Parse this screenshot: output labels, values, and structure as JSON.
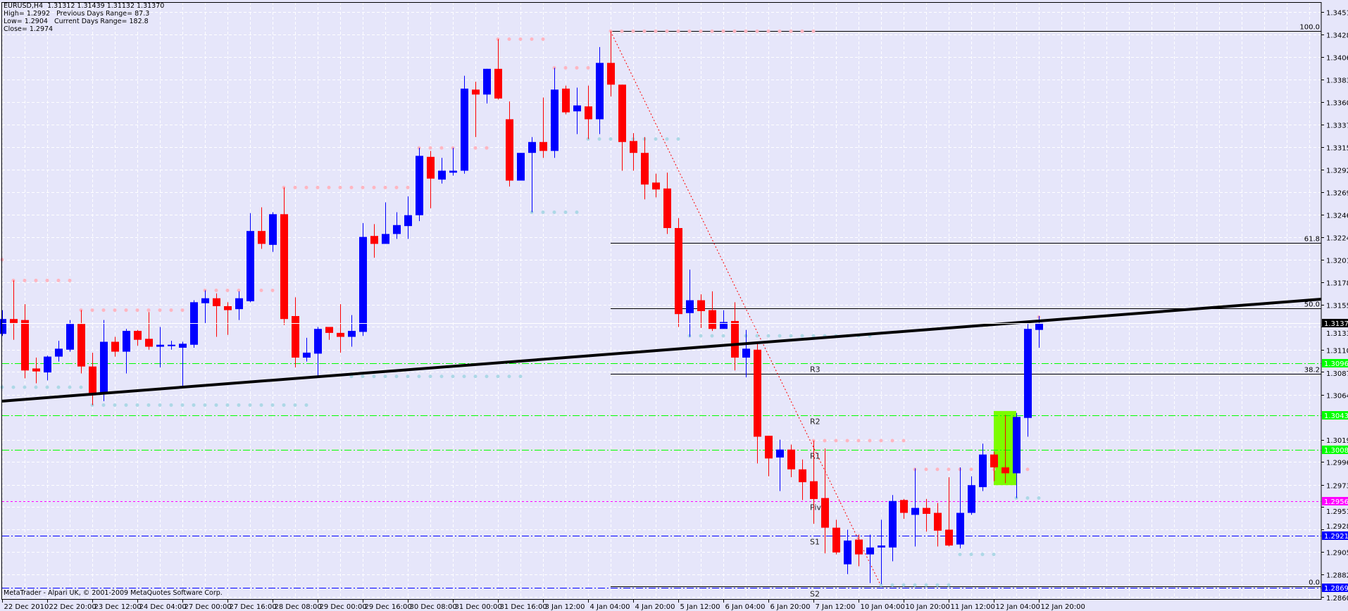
{
  "window": {
    "symbol_line": "EURUSD,H4  1.31312 1.31439 1.31132 1.31370",
    "high_line": "High= 1.2992",
    "prev_range_line": "Previous Days Range= 87.3",
    "low_line": "Low= 1.2904",
    "cur_range_line": "Current Days Range= 182.8",
    "close_line": "Close= 1.2974",
    "copyright": "MetaTrader - Alpari UK, © 2001-2009 MetaQuotes Software Corp."
  },
  "colors": {
    "background": "#E6E6FA",
    "bull": "#0000FF",
    "bear": "#FF0000",
    "resistance_dots": "#FFB6C1",
    "support_dots": "#ADD8E6",
    "pivot_r": "#00FF00",
    "pivot": "#FF00FF",
    "pivot_s": "#0000FF",
    "highlight": "#7CFC00",
    "trendline": "#000000"
  },
  "chart_data": {
    "type": "candlestick",
    "title": "EURUSD,H4",
    "grid": true,
    "ylim": [
      1.286,
      1.34515
    ],
    "y_ticks": [
      "1.34515",
      "1.34285",
      "1.34060",
      "1.33830",
      "1.33605",
      "1.33375",
      "1.33150",
      "1.32920",
      "1.32695",
      "1.32465",
      "1.32240",
      "1.32010",
      "1.31785",
      "1.31555",
      "1.31330",
      "1.31100",
      "1.30875",
      "1.30645",
      "1.30190",
      "1.29965",
      "1.29735",
      "1.29510",
      "1.29280",
      "1.29055",
      "1.28825",
      "1.28600"
    ],
    "x_labels": [
      "22 Dec 2010",
      "22 Dec 20:00",
      "23 Dec 12:00",
      "24 Dec 04:00",
      "27 Dec 00:00",
      "27 Dec 16:00",
      "28 Dec 08:00",
      "29 Dec 00:00",
      "29 Dec 16:00",
      "30 Dec 08:00",
      "31 Dec 00:00",
      "31 Dec 16:00",
      "3 Jan 12:00",
      "4 Jan 04:00",
      "4 Jan 20:00",
      "5 Jan 12:00",
      "6 Jan 04:00",
      "6 Jan 20:00",
      "7 Jan 12:00",
      "10 Jan 04:00",
      "10 Jan 20:00",
      "11 Jan 12:00",
      "12 Jan 04:00",
      "12 Jan 20:00"
    ],
    "ohlc": [
      [
        1.3126,
        1.315,
        1.3124,
        1.3141
      ],
      [
        1.3141,
        1.318,
        1.312,
        1.3137
      ],
      [
        1.314,
        1.3156,
        1.3081,
        1.3089
      ],
      [
        1.3091,
        1.3102,
        1.3076,
        1.3088
      ],
      [
        1.3087,
        1.3104,
        1.3079,
        1.3103
      ],
      [
        1.3103,
        1.3119,
        1.3098,
        1.3111
      ],
      [
        1.311,
        1.314,
        1.3108,
        1.3136
      ],
      [
        1.3136,
        1.315,
        1.3086,
        1.3093
      ],
      [
        1.3093,
        1.3107,
        1.3054,
        1.3066
      ],
      [
        1.3066,
        1.314,
        1.3058,
        1.3118
      ],
      [
        1.3118,
        1.3123,
        1.3103,
        1.3108
      ],
      [
        1.3108,
        1.3131,
        1.3086,
        1.3129
      ],
      [
        1.3129,
        1.313,
        1.3114,
        1.312
      ],
      [
        1.3121,
        1.3148,
        1.311,
        1.3113
      ],
      [
        1.3113,
        1.3133,
        1.3092,
        1.3115
      ],
      [
        1.3114,
        1.3119,
        1.311,
        1.3115
      ],
      [
        1.3112,
        1.3118,
        1.3071,
        1.3116
      ],
      [
        1.3115,
        1.316,
        1.3112,
        1.3158
      ],
      [
        1.3157,
        1.317,
        1.3137,
        1.3162
      ],
      [
        1.3162,
        1.3167,
        1.3123,
        1.3154
      ],
      [
        1.3154,
        1.3158,
        1.3125,
        1.315
      ],
      [
        1.3151,
        1.3169,
        1.314,
        1.3162
      ],
      [
        1.3159,
        1.3248,
        1.3158,
        1.323
      ],
      [
        1.323,
        1.3254,
        1.3212,
        1.3217
      ],
      [
        1.3216,
        1.3249,
        1.3209,
        1.3247
      ],
      [
        1.3247,
        1.3274,
        1.3135,
        1.3141
      ],
      [
        1.3144,
        1.3163,
        1.3092,
        1.3102
      ],
      [
        1.3102,
        1.3122,
        1.3098,
        1.3107
      ],
      [
        1.3106,
        1.3133,
        1.3083,
        1.3131
      ],
      [
        1.3133,
        1.3133,
        1.312,
        1.3127
      ],
      [
        1.3127,
        1.3156,
        1.3107,
        1.3123
      ],
      [
        1.3123,
        1.3145,
        1.3113,
        1.3129
      ],
      [
        1.3128,
        1.3238,
        1.3124,
        1.3224
      ],
      [
        1.3225,
        1.3237,
        1.3203,
        1.3217
      ],
      [
        1.3217,
        1.3259,
        1.3217,
        1.3227
      ],
      [
        1.3227,
        1.3249,
        1.3222,
        1.3236
      ],
      [
        1.3235,
        1.3265,
        1.3222,
        1.3246
      ],
      [
        1.3246,
        1.3314,
        1.324,
        1.3306
      ],
      [
        1.3305,
        1.3311,
        1.3253,
        1.3283
      ],
      [
        1.3282,
        1.3304,
        1.3278,
        1.3291
      ],
      [
        1.3289,
        1.3314,
        1.3286,
        1.3291
      ],
      [
        1.3291,
        1.3387,
        1.3288,
        1.3374
      ],
      [
        1.3373,
        1.3381,
        1.3325,
        1.3368
      ],
      [
        1.3368,
        1.3394,
        1.3359,
        1.3394
      ],
      [
        1.3394,
        1.3424,
        1.3363,
        1.3364
      ],
      [
        1.3343,
        1.3361,
        1.3275,
        1.3281
      ],
      [
        1.3281,
        1.3309,
        1.3281,
        1.3309
      ],
      [
        1.3309,
        1.3325,
        1.3249,
        1.332
      ],
      [
        1.332,
        1.3365,
        1.3304,
        1.3311
      ],
      [
        1.3311,
        1.3395,
        1.3304,
        1.3373
      ],
      [
        1.3374,
        1.3377,
        1.3348,
        1.335
      ],
      [
        1.3351,
        1.3375,
        1.3328,
        1.3357
      ],
      [
        1.3356,
        1.3377,
        1.3323,
        1.3343
      ],
      [
        1.3343,
        1.3416,
        1.3328,
        1.34
      ],
      [
        1.34,
        1.3432,
        1.3366,
        1.3378
      ],
      [
        1.3378,
        1.3378,
        1.3291,
        1.332
      ],
      [
        1.3321,
        1.3329,
        1.3291,
        1.3309
      ],
      [
        1.3309,
        1.3325,
        1.3262,
        1.3277
      ],
      [
        1.3279,
        1.3288,
        1.3264,
        1.3272
      ],
      [
        1.3273,
        1.3289,
        1.3227,
        1.3233
      ],
      [
        1.3233,
        1.3243,
        1.3133,
        1.3146
      ],
      [
        1.3147,
        1.3191,
        1.3123,
        1.316
      ],
      [
        1.316,
        1.3166,
        1.3132,
        1.3149
      ],
      [
        1.315,
        1.3169,
        1.3129,
        1.3131
      ],
      [
        1.3131,
        1.315,
        1.3131,
        1.3138
      ],
      [
        1.3139,
        1.3158,
        1.3089,
        1.3102
      ],
      [
        1.3102,
        1.313,
        1.3082,
        1.3111
      ],
      [
        1.311,
        1.3118,
        1.2995,
        1.3022
      ],
      [
        1.3023,
        1.3023,
        1.2982,
        1.3
      ],
      [
        1.3001,
        1.3019,
        1.2967,
        1.3009
      ],
      [
        1.3009,
        1.3014,
        1.2981,
        1.2989
      ],
      [
        1.2989,
        1.2999,
        1.2958,
        1.2976
      ],
      [
        1.2977,
        1.3018,
        1.2934,
        1.2959
      ],
      [
        1.296,
        1.301,
        1.2904,
        1.293
      ],
      [
        1.293,
        1.2938,
        1.2903,
        1.2905
      ],
      [
        1.2893,
        1.2928,
        1.2883,
        1.2917
      ],
      [
        1.2918,
        1.2923,
        1.2891,
        1.2903
      ],
      [
        1.2903,
        1.2923,
        1.2874,
        1.291
      ],
      [
        1.291,
        1.2938,
        1.2873,
        1.2912
      ],
      [
        1.291,
        1.2963,
        1.2896,
        1.2957
      ],
      [
        1.2958,
        1.2959,
        1.2939,
        1.2945
      ],
      [
        1.2943,
        1.299,
        1.2911,
        1.295
      ],
      [
        1.295,
        1.2959,
        1.2926,
        1.2944
      ],
      [
        1.2945,
        1.2955,
        1.2911,
        1.2927
      ],
      [
        1.2928,
        1.2981,
        1.2911,
        1.2912
      ],
      [
        1.2913,
        1.2991,
        1.2909,
        1.2945
      ],
      [
        1.2945,
        1.2982,
        1.2943,
        1.2973
      ],
      [
        1.2971,
        1.3015,
        1.2967,
        1.3004
      ],
      [
        1.3004,
        1.3007,
        1.2977,
        1.2991
      ],
      [
        1.2991,
        1.3044,
        1.2975,
        1.2985
      ],
      [
        1.2985,
        1.3046,
        1.296,
        1.3042
      ],
      [
        1.3041,
        1.3136,
        1.3022,
        1.3131
      ],
      [
        1.313,
        1.3144,
        1.3112,
        1.3137
      ]
    ],
    "dot_rows": [
      {
        "kind": "resistance",
        "price": 1.3201,
        "from": 0,
        "to": 0
      },
      {
        "kind": "resistance",
        "price": 1.318,
        "from": 1,
        "to": 6
      },
      {
        "kind": "resistance",
        "price": 1.315,
        "from": 7,
        "to": 16
      },
      {
        "kind": "resistance",
        "price": 1.317,
        "from": 18,
        "to": 24
      },
      {
        "kind": "resistance",
        "price": 1.3274,
        "from": 25,
        "to": 36
      },
      {
        "kind": "resistance",
        "price": 1.3314,
        "from": 37,
        "to": 43
      },
      {
        "kind": "resistance",
        "price": 1.3424,
        "from": 44,
        "to": 48
      },
      {
        "kind": "resistance",
        "price": 1.3395,
        "from": 49,
        "to": 52
      },
      {
        "kind": "resistance",
        "price": 1.3432,
        "from": 54,
        "to": 72
      },
      {
        "kind": "resistance",
        "price": 1.3018,
        "from": 72,
        "to": 80
      },
      {
        "kind": "resistance",
        "price": 1.2989,
        "from": 81,
        "to": 91
      },
      {
        "kind": "resistance",
        "price": 1.3143,
        "from": 92,
        "to": 92
      },
      {
        "kind": "support",
        "price": 1.3072,
        "from": 0,
        "to": 7
      },
      {
        "kind": "support",
        "price": 1.3054,
        "from": 8,
        "to": 27
      },
      {
        "kind": "support",
        "price": 1.3083,
        "from": 31,
        "to": 46
      },
      {
        "kind": "support",
        "price": 1.3249,
        "from": 47,
        "to": 51
      },
      {
        "kind": "support",
        "price": 1.3323,
        "from": 52,
        "to": 60
      },
      {
        "kind": "support",
        "price": 1.3124,
        "from": 61,
        "to": 77
      },
      {
        "kind": "support",
        "price": 1.2872,
        "from": 78,
        "to": 84
      },
      {
        "kind": "support",
        "price": 1.2903,
        "from": 85,
        "to": 88
      },
      {
        "kind": "support",
        "price": 1.296,
        "from": 90,
        "to": 92
      }
    ],
    "pivots": [
      {
        "label": "R3",
        "price": 1.30962,
        "price_label": "1.30962",
        "kind": "r"
      },
      {
        "label": "R2",
        "price": 1.30439,
        "price_label": "1.30439",
        "kind": "r"
      },
      {
        "label": "R1",
        "price": 1.30089,
        "price_label": "1.30089",
        "kind": "r"
      },
      {
        "label": "Pivot",
        "price": 1.29566,
        "price_label": "1.29566",
        "kind": "p"
      },
      {
        "label": "S1",
        "price": 1.29216,
        "price_label": "1.29216",
        "kind": "s"
      },
      {
        "label": "S2",
        "price": 1.28693,
        "price_label": "1.28693",
        "kind": "s"
      }
    ],
    "fibonacci": {
      "from_index": 54,
      "to_index": 78,
      "high": 1.3432,
      "low": 1.2871,
      "levels": [
        {
          "label": "100.0",
          "price": 1.3432
        },
        {
          "label": "61.8",
          "price": 1.3218
        },
        {
          "label": "50.0",
          "price": 1.31515
        },
        {
          "label": "38.2",
          "price": 1.30853
        },
        {
          "label": "0.0",
          "price": 1.2871
        }
      ]
    },
    "trendline": {
      "points": [
        {
          "index": 0,
          "price": 1.3058
        },
        {
          "index": 92,
          "price": 1.3139
        }
      ]
    },
    "current_price": {
      "price": 1.3137,
      "label": "1.31370"
    },
    "highlight_zone": {
      "from_index": 88,
      "to_index": 90,
      "low": 1.2973,
      "high": 1.3048
    }
  }
}
